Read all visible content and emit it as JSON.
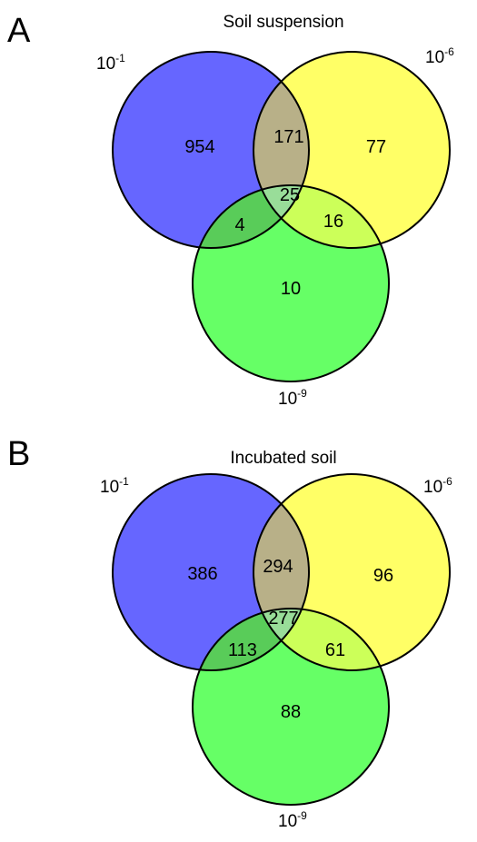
{
  "colors": {
    "set_1": "#6666ff",
    "set_6": "#ffff66",
    "set_9": "#66ff66",
    "overlap_1_6": "#b8b088",
    "overlap_1_9": "#59cc59",
    "overlap_6_9": "#ccff59",
    "overlap_all": "#99dd99",
    "outline": "#000000"
  },
  "panels": [
    {
      "letter": "A",
      "title": "Soil suspension",
      "sets": {
        "a": {
          "base": "10",
          "exp": "-1"
        },
        "b": {
          "base": "10",
          "exp": "-6"
        },
        "c": {
          "base": "10",
          "exp": "-9"
        }
      },
      "counts": {
        "only_a": "954",
        "a_b": "171",
        "only_b": "77",
        "all": "25",
        "a_c": "4",
        "b_c": "16",
        "only_c": "10"
      }
    },
    {
      "letter": "B",
      "title": "Incubated soil",
      "sets": {
        "a": {
          "base": "10",
          "exp": "-1"
        },
        "b": {
          "base": "10",
          "exp": "-6"
        },
        "c": {
          "base": "10",
          "exp": "-9"
        }
      },
      "counts": {
        "only_a": "386",
        "a_b": "294",
        "only_b": "96",
        "all": "277",
        "a_c": "113",
        "b_c": "61",
        "only_c": "88"
      }
    }
  ]
}
